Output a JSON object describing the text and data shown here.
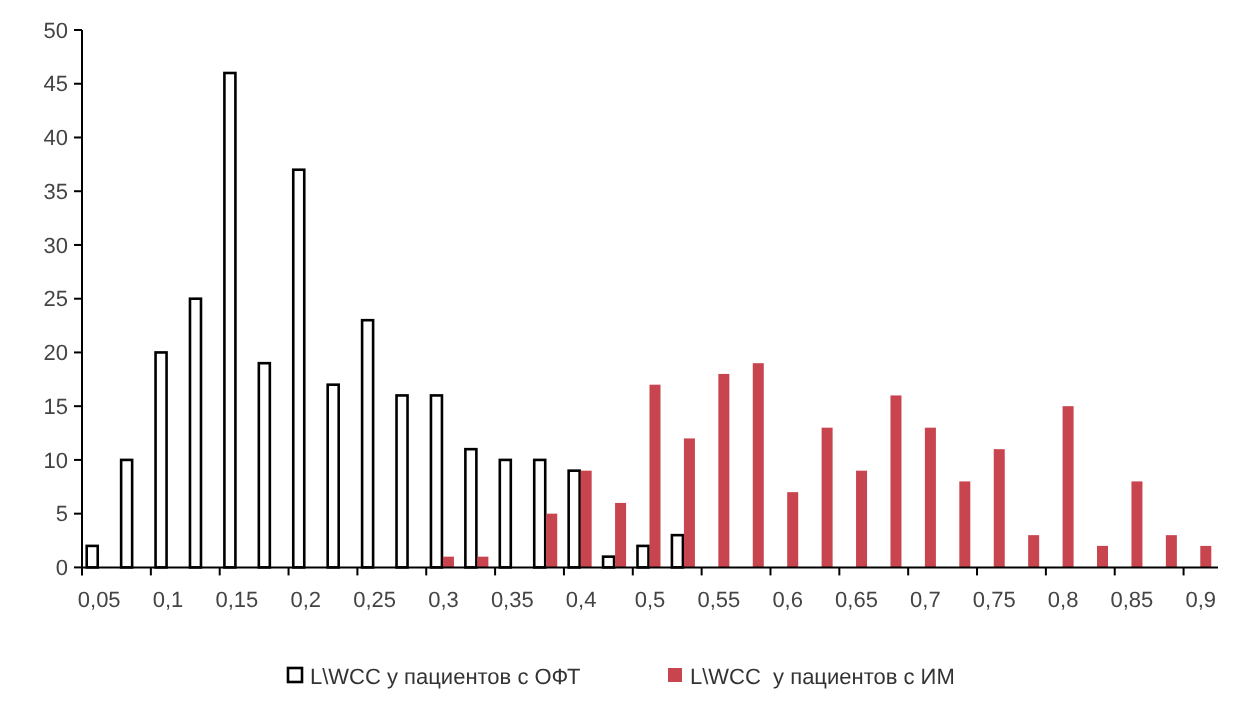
{
  "chart_data": {
    "type": "bar",
    "categories": [
      "0,05",
      null,
      "0,1",
      null,
      "0,15",
      null,
      "0,2",
      null,
      "0,25",
      null,
      "0,3",
      null,
      "0,35",
      null,
      "0,4",
      null,
      "0,5",
      null,
      "0,55",
      null,
      "0,6",
      null,
      "0,65",
      null,
      "0,7",
      null,
      "0,75",
      null,
      "0,8",
      null,
      "0,85",
      null,
      "0,9"
    ],
    "series": [
      {
        "name": "L\\WCC у пациентов с ОФТ",
        "color": "#ffffff",
        "values": [
          2,
          10,
          20,
          25,
          46,
          19,
          37,
          17,
          23,
          16,
          16,
          11,
          10,
          10,
          9,
          1,
          2,
          3,
          0,
          0,
          0,
          0,
          0,
          0,
          0,
          0,
          0,
          0,
          0,
          0,
          0,
          0,
          0
        ]
      },
      {
        "name": "L\\WCC  у пациентов с ИМ",
        "color": "#c8454f",
        "values": [
          0,
          0,
          0,
          0,
          0,
          0,
          0,
          0,
          0,
          0,
          1,
          1,
          0,
          5,
          9,
          6,
          17,
          12,
          18,
          19,
          7,
          13,
          9,
          16,
          13,
          8,
          11,
          3,
          15,
          2,
          8,
          3,
          2
        ]
      }
    ],
    "ylim": [
      0,
      50
    ],
    "yticks": [
      0,
      5,
      10,
      15,
      20,
      25,
      30,
      35,
      40,
      45,
      50
    ],
    "grid": false,
    "legend": "bottom"
  }
}
